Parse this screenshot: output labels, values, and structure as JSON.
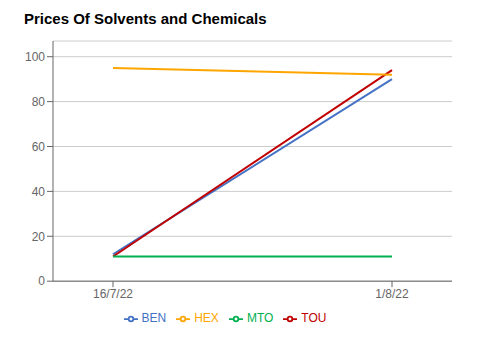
{
  "chart_data": {
    "type": "line",
    "title": "Prices Of Solvents and Chemicals",
    "categories": [
      "16/7/22",
      "1/8/22"
    ],
    "series": [
      {
        "name": "BEN",
        "color": "#4472C4",
        "values": [
          12,
          90
        ]
      },
      {
        "name": "TOU",
        "color": "#C00000",
        "values": [
          11,
          94
        ]
      },
      {
        "name": "HEX",
        "color": "#FFA500",
        "values": [
          95,
          92
        ]
      },
      {
        "name": "MTO",
        "color": "#00B050",
        "values": [
          11,
          11
        ]
      }
    ],
    "ylim": [
      0,
      107
    ],
    "yticks": [
      0,
      20,
      40,
      60,
      80,
      100
    ],
    "grid": true,
    "legend": "bottom"
  }
}
